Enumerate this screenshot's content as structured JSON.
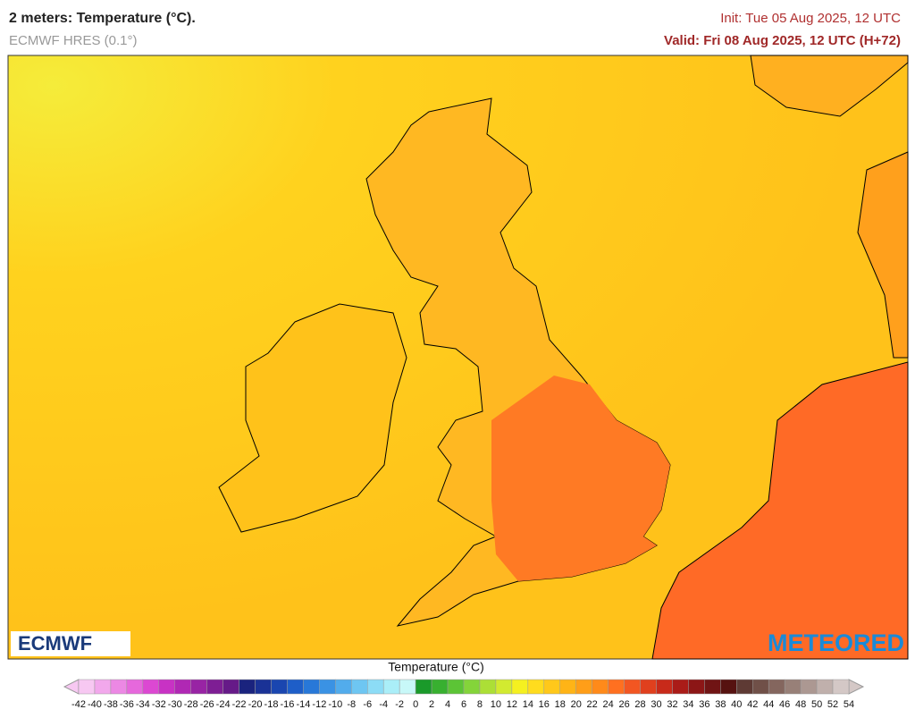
{
  "header": {
    "title": "2 meters: Temperature (°C).",
    "model": "ECMWF HRES (0.1°)",
    "init": "Init: Tue 05 Aug 2025, 12 UTC",
    "valid": "Valid: Fri 08 Aug 2025, 12 UTC (H+72)"
  },
  "logos": {
    "left": "ECMWF",
    "right": "METEORED"
  },
  "colorbar": {
    "label": "Temperature (°C)",
    "ticks": [
      -42,
      -40,
      -38,
      -36,
      -34,
      -32,
      -30,
      -28,
      -26,
      -24,
      -22,
      -20,
      -18,
      -16,
      -14,
      -12,
      -10,
      -8,
      -6,
      -4,
      -2,
      0,
      2,
      4,
      6,
      8,
      10,
      12,
      14,
      16,
      18,
      20,
      22,
      24,
      26,
      28,
      30,
      32,
      34,
      36,
      38,
      40,
      42,
      44,
      46,
      48,
      50,
      52,
      54
    ],
    "colors": [
      "#f7c8f2",
      "#f2a8ec",
      "#ec88e4",
      "#e668dc",
      "#dc48d2",
      "#c832c4",
      "#b028b4",
      "#9824a4",
      "#7e1e94",
      "#661a88",
      "#1a237e",
      "#1a3296",
      "#1a46b0",
      "#1e5ec8",
      "#2878d8",
      "#3a92e4",
      "#52acec",
      "#6ec6f2",
      "#8cdcf6",
      "#aaeef8",
      "#c8f8f8",
      "#1a9a2a",
      "#38b030",
      "#5cc436",
      "#84d43a",
      "#acdf36",
      "#d2ea30",
      "#f5f020",
      "#ffdc1e",
      "#ffc81a",
      "#ffb416",
      "#ff9e18",
      "#ff8a1a",
      "#ff7020",
      "#f25622",
      "#e0401e",
      "#c82a1a",
      "#aa1c18",
      "#8c1616",
      "#701414",
      "#561210",
      "#5e3a34",
      "#705048",
      "#84665e",
      "#988078",
      "#ac9892",
      "#c0b0ac",
      "#d4c8c6"
    ]
  }
}
